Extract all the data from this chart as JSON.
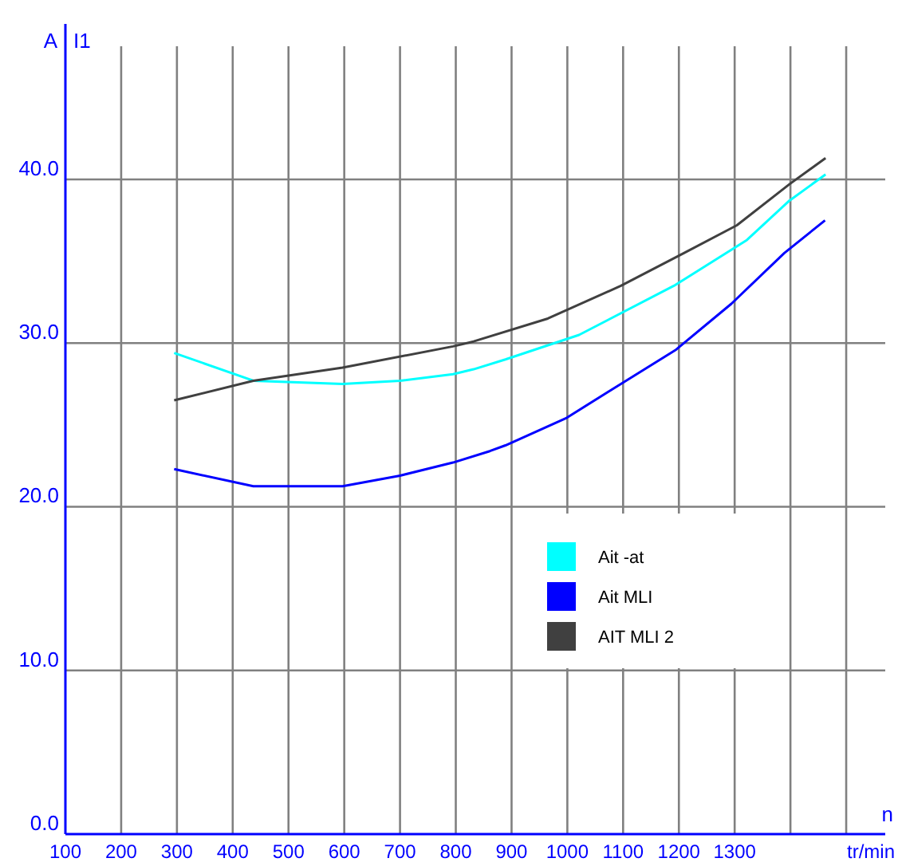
{
  "chart_data": {
    "type": "line",
    "title": "I1",
    "ylabel": "A",
    "xlabel": "tr/min",
    "annotations": [
      "n"
    ],
    "xlim": [
      100,
      1570
    ],
    "xticks": [
      100,
      200,
      300,
      400,
      500,
      600,
      700,
      800,
      900,
      1000,
      1100,
      1200,
      1300,
      {
        "value": 1400,
        "label": null
      },
      {
        "value": 1500,
        "label": null
      }
    ],
    "ylim": [
      0,
      49.5
    ],
    "yticks": [
      {
        "value": 0,
        "label": "0.0"
      },
      {
        "value": 10,
        "label": "10.0"
      },
      {
        "value": 20,
        "label": "20.0"
      },
      {
        "value": 30,
        "label": "30.0"
      },
      {
        "value": 40,
        "label": "40.0"
      }
    ],
    "grid": true,
    "legend": "bottom right",
    "marker": "none",
    "line_style": "solid",
    "series": [
      {
        "name": "Ait -at",
        "color": "#00ffff",
        "x": [
          295,
          437,
          597,
          700,
          795,
          832,
          889,
          1021,
          1191,
          1322,
          1398,
          1463
        ],
        "values": [
          29.4,
          27.7,
          27.5,
          27.7,
          28.1,
          28.4,
          29.0,
          30.5,
          33.5,
          36.3,
          38.7,
          40.3
        ]
      },
      {
        "name": "Ait MLI",
        "color": "#0000ff",
        "x": [
          295,
          437,
          597,
          700,
          795,
          861,
          889,
          997,
          1096,
          1195,
          1294,
          1389,
          1462
        ],
        "values": [
          22.3,
          21.25,
          21.25,
          21.9,
          22.7,
          23.4,
          23.75,
          25.4,
          27.5,
          29.6,
          32.4,
          35.5,
          37.5
        ]
      },
      {
        "name": "AIT MLI 2",
        "color": "#404040",
        "x": [
          295,
          437,
          597,
          795,
          832,
          965,
          1096,
          1209,
          1304,
          1398,
          1463
        ],
        "values": [
          26.5,
          27.7,
          28.5,
          29.8,
          30.1,
          31.5,
          33.5,
          35.5,
          37.2,
          39.7,
          41.3
        ]
      }
    ]
  }
}
